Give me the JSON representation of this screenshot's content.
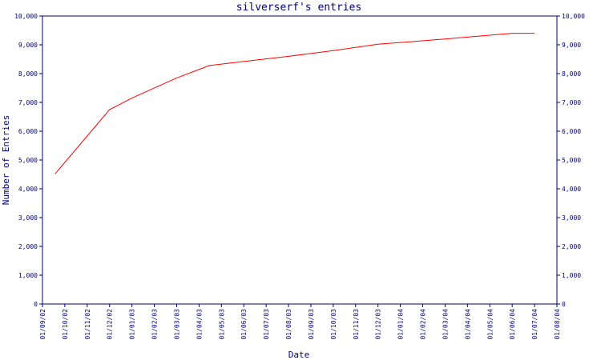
{
  "chart_data": {
    "type": "line",
    "title": "silverserf's entries",
    "xlabel": "Date",
    "ylabel": "Number of Entries",
    "ylim": [
      0,
      10000
    ],
    "y_ticks": [
      "0",
      "1,000",
      "2,000",
      "3,000",
      "4,000",
      "5,000",
      "6,000",
      "7,000",
      "8,000",
      "9,000",
      "10,000"
    ],
    "x_ticks": [
      "01/09/02",
      "01/10/02",
      "01/11/02",
      "01/12/02",
      "01/01/03",
      "01/02/03",
      "01/03/03",
      "01/04/03",
      "01/05/03",
      "01/06/03",
      "01/07/03",
      "01/08/03",
      "01/09/03",
      "01/10/03",
      "01/11/03",
      "01/12/03",
      "01/01/04",
      "01/02/04",
      "01/03/04",
      "01/04/04",
      "01/05/04",
      "01/06/04",
      "01/07/04",
      "01/08/04"
    ],
    "grid": false,
    "legend": "none",
    "colors": {
      "line": "#ff0000",
      "axes": "#000080",
      "text": "#000080"
    },
    "series": [
      {
        "x": [
          "2002-09-18",
          "2002-12-01",
          "2003-01-01",
          "2003-03-01",
          "2003-04-15",
          "2003-06-01",
          "2003-08-01",
          "2003-10-01",
          "2003-12-01",
          "2004-03-01",
          "2004-06-01",
          "2004-07-01"
        ],
        "values": [
          4520,
          6750,
          7150,
          7850,
          8280,
          8420,
          8600,
          8800,
          9020,
          9200,
          9400,
          9400
        ]
      }
    ]
  }
}
